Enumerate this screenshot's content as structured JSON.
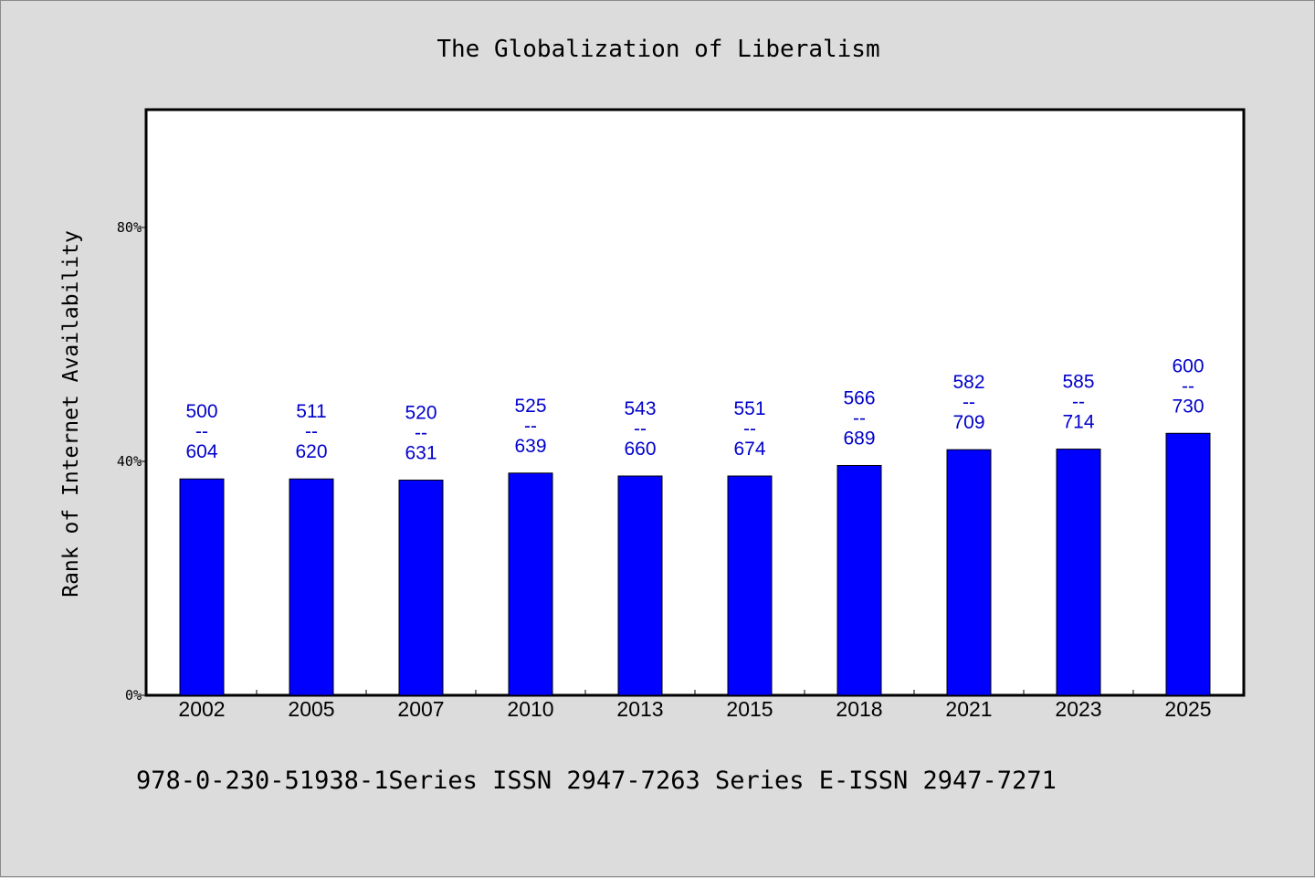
{
  "chart_data": {
    "type": "bar",
    "title": "The Globalization of Liberalism",
    "ylabel": "Rank of Internet Availability",
    "xlabel": "",
    "categories": [
      "2002",
      "2005",
      "2007",
      "2010",
      "2013",
      "2015",
      "2018",
      "2021",
      "2023",
      "2025"
    ],
    "values": [
      37,
      37,
      36.8,
      38,
      37.5,
      37.5,
      39.3,
      42,
      42.1,
      44.8
    ],
    "value_unit": "%",
    "label_top": [
      "500",
      "511",
      "520",
      "525",
      "543",
      "551",
      "566",
      "582",
      "585",
      "600"
    ],
    "label_separator": "--",
    "label_bottom": [
      "604",
      "620",
      "631",
      "639",
      "660",
      "674",
      "689",
      "709",
      "714",
      "730"
    ],
    "yticks": [
      "0%",
      "40%",
      "80%"
    ],
    "ytick_values": [
      0,
      40,
      80
    ],
    "ylim": [
      0,
      100
    ],
    "grid": false,
    "legend": "none",
    "bar_color": "#0000ff",
    "label_color": "#0000cc"
  },
  "footer": {
    "text": "978-0-230-51938-1Series ISSN 2947-7263 Series E-ISSN 2947-7271"
  }
}
